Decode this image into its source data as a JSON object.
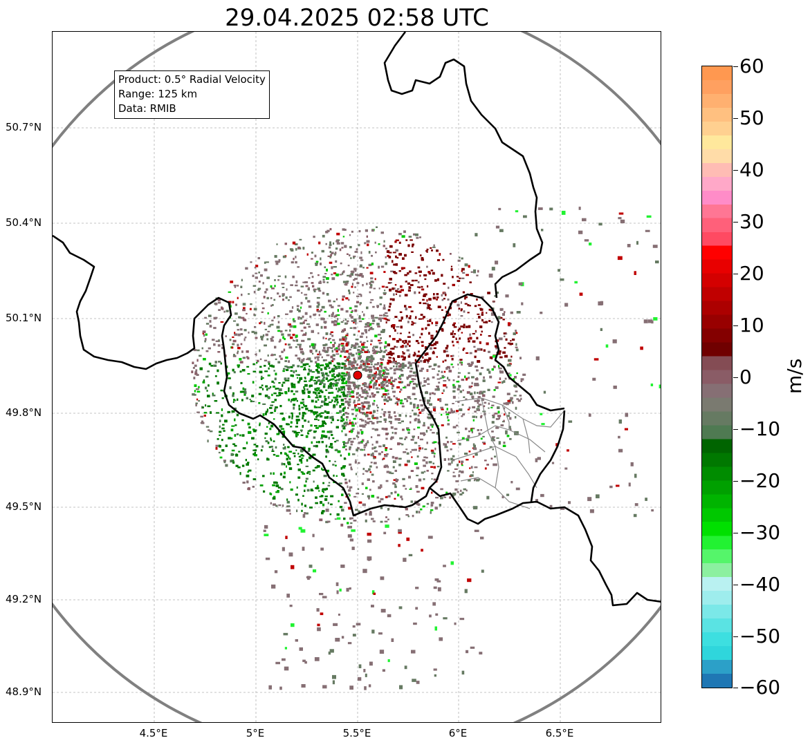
{
  "title": "29.04.2025 02:58 UTC",
  "info": {
    "product": "Product: 0.5° Radial Velocity",
    "range": "Range: 125 km",
    "data": "Data: RMIB"
  },
  "lat_labels": [
    "50.7°N",
    "50.4°N",
    "50.1°N",
    "49.8°N",
    "49.5°N",
    "49.2°N",
    "48.9°N"
  ],
  "lon_labels": [
    "4.5°E",
    "5°E",
    "5.5°E",
    "6°E",
    "6.5°E"
  ],
  "colorbar": {
    "unit": "m/s",
    "ticks": [
      "60",
      "50",
      "40",
      "30",
      "20",
      "10",
      "0",
      "−10",
      "−20",
      "−30",
      "−40",
      "−50",
      "−60"
    ],
    "min": -60,
    "max": 60,
    "colors": [
      "#1f77b4",
      "#2ca0c8",
      "#2fd6dc",
      "#3ddfe0",
      "#5ae3e3",
      "#7be8e8",
      "#9eeded",
      "#b9f1f1",
      "#8cf0a0",
      "#55f56a",
      "#22f232",
      "#00e000",
      "#00c800",
      "#00b400",
      "#00a000",
      "#008c00",
      "#007800",
      "#006400",
      "#4f7a52",
      "#667a62",
      "#7a7a70",
      "#866f74",
      "#8a5c66",
      "#844c54",
      "#700000",
      "#840000",
      "#980000",
      "#ac0000",
      "#c00000",
      "#d40000",
      "#e80000",
      "#ff0000",
      "#ff4a62",
      "#ff607a",
      "#ff7694",
      "#ff8cc8",
      "#ffa8c8",
      "#ffbcb4",
      "#ffdca8",
      "#ffe89c",
      "#ffd090",
      "#ffc080",
      "#ffb070",
      "#ffa060",
      "#ff9850"
    ]
  },
  "radar": {
    "site_color": "#e00000",
    "range_ring_color": "#808080",
    "border_color": "#000000",
    "grid_color": "#b0b0b0"
  }
}
